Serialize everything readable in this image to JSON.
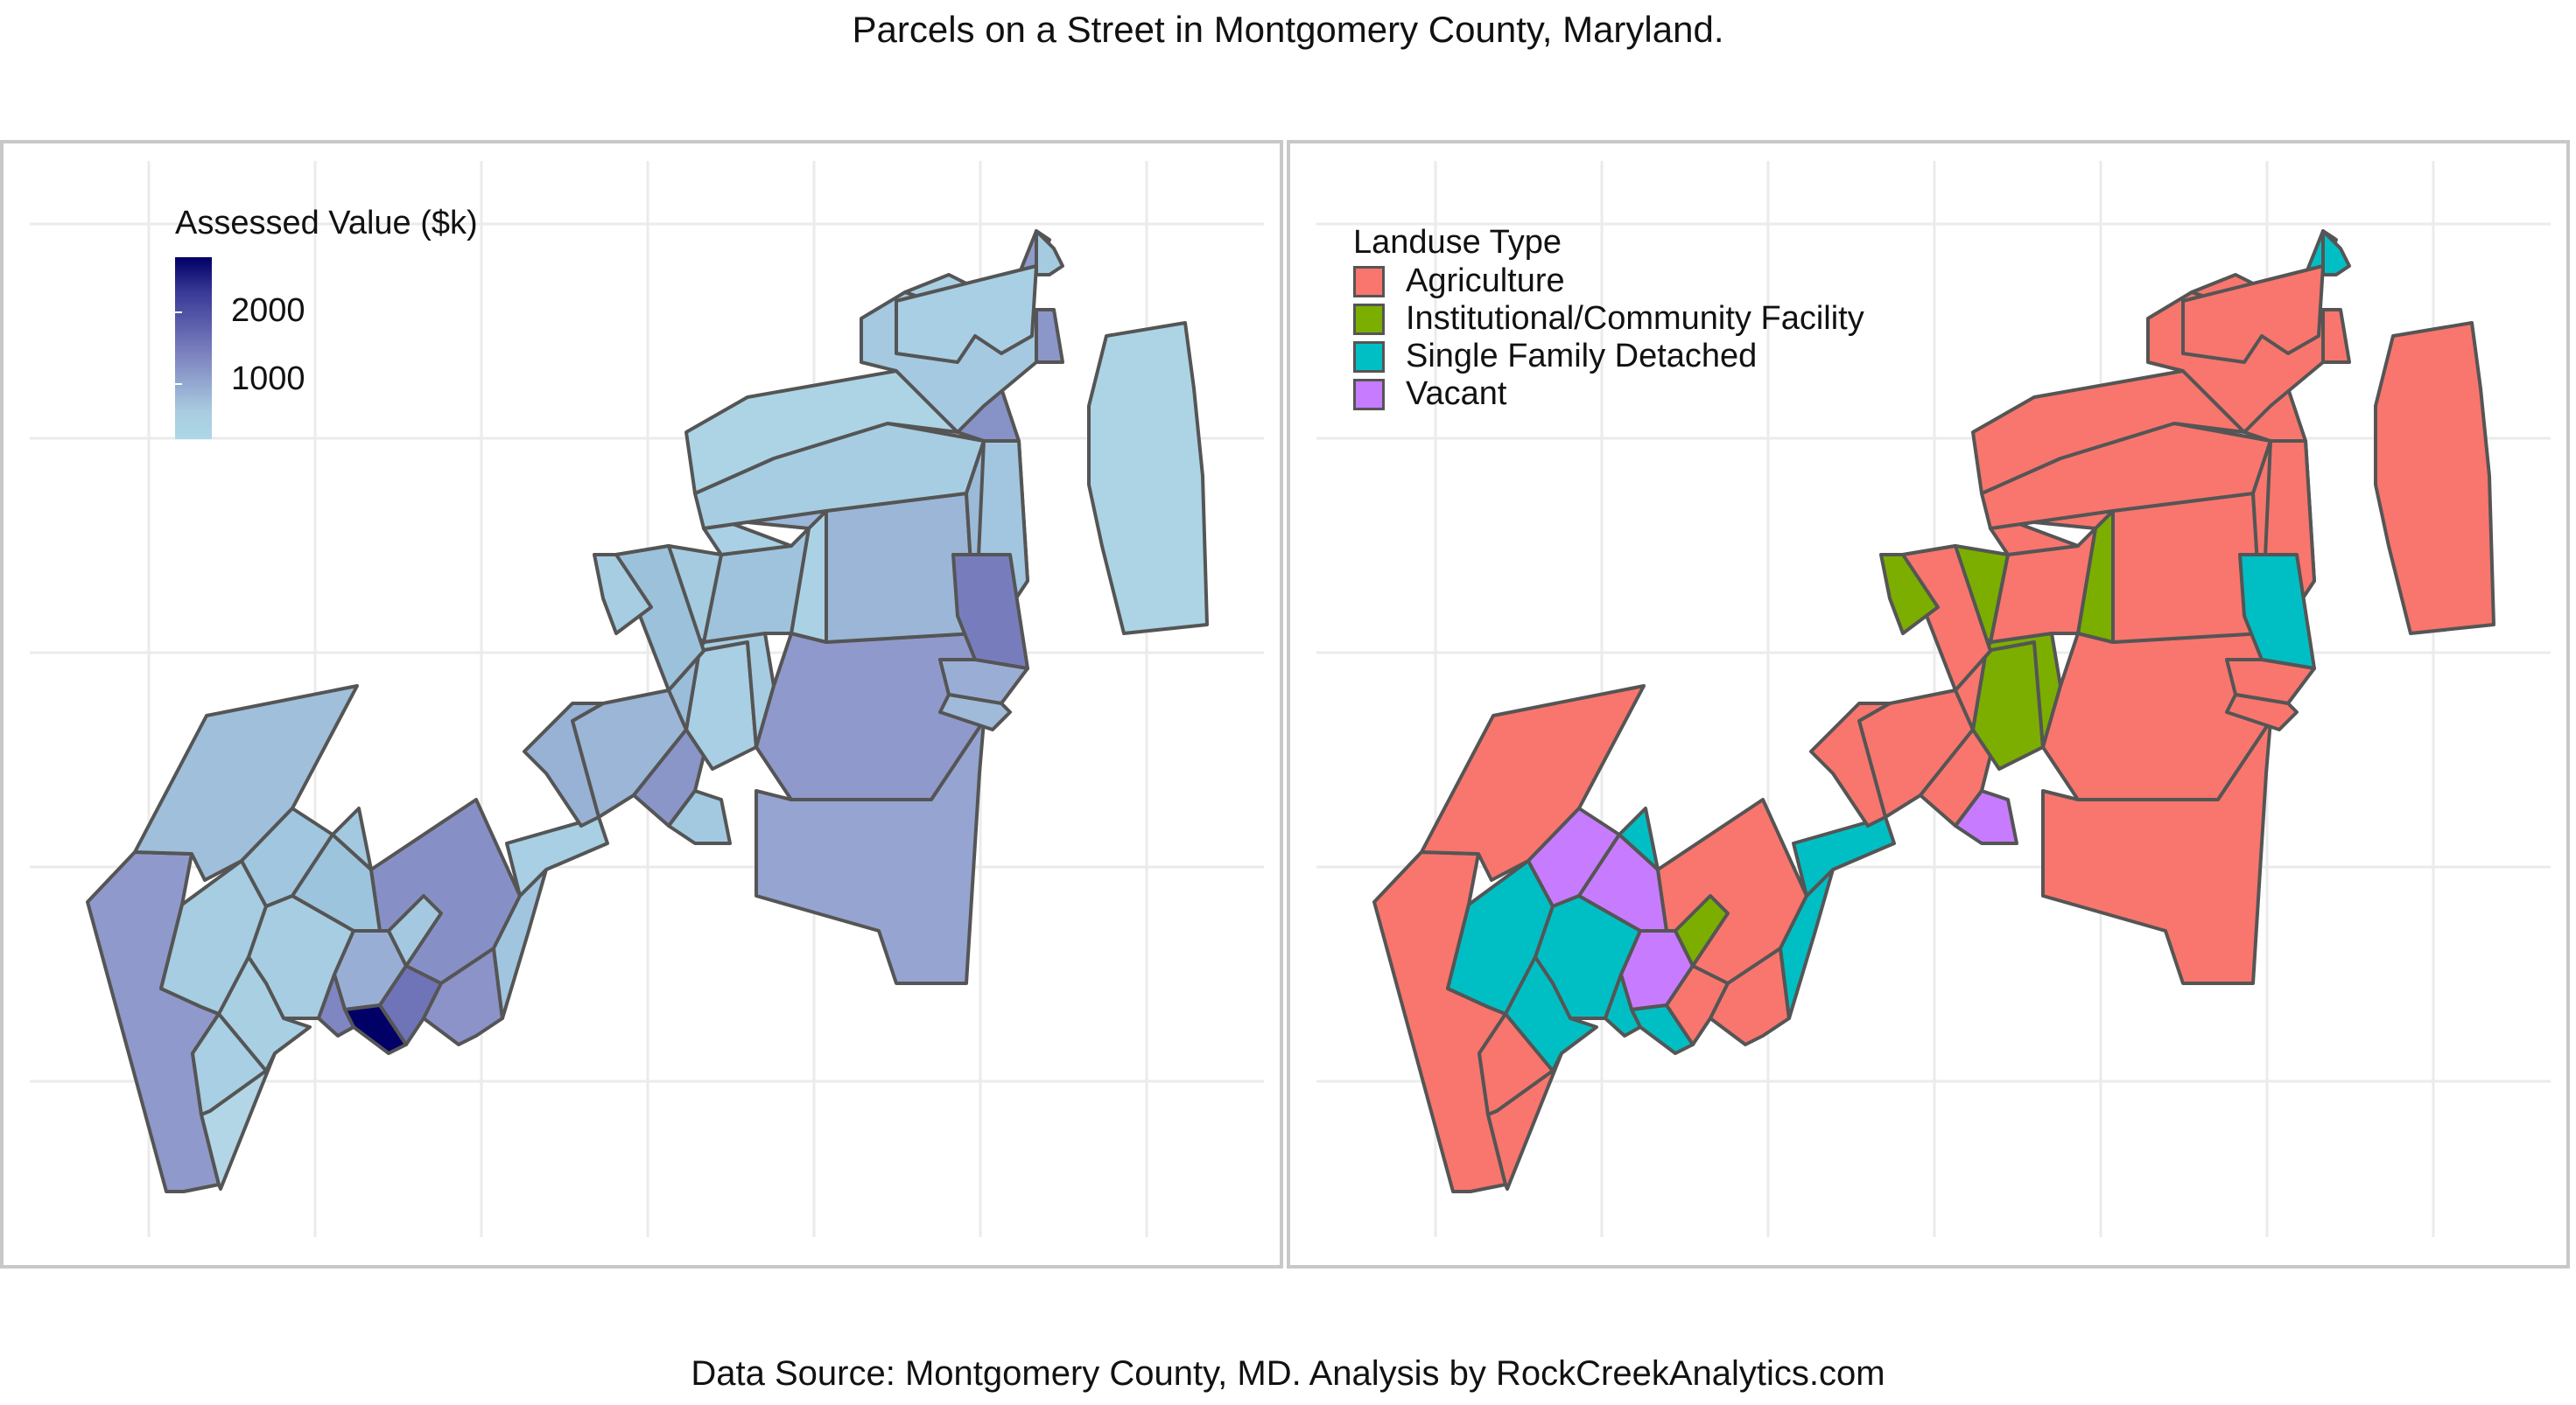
{
  "title": "Parcels on a Street in Montgomery County, Maryland.",
  "caption": "Data Source: Montgomery County, MD.  Analysis by RockCreekAnalytics.com",
  "colors": {
    "grid": "#ebebeb",
    "outline": "#555555",
    "panel_border": "#c8c8c8",
    "value_low": "#add8e6",
    "value_high": "#000066"
  },
  "left_map": {
    "legend": {
      "title": "Assessed Value ($k)",
      "ticks": [
        {
          "label": "2000",
          "value": 2000
        },
        {
          "label": "1000",
          "value": 1000
        }
      ],
      "range": [
        0,
        2500
      ]
    }
  },
  "right_map": {
    "legend": {
      "title": "Landuse Type",
      "items": [
        {
          "label": "Agriculture",
          "color": "#f8766d"
        },
        {
          "label": "Institutional/Community Facility",
          "color": "#7cae00"
        },
        {
          "label": "Single Family Detached",
          "color": "#00bfc4"
        },
        {
          "label": "Vacant",
          "color": "#c77cff"
        }
      ]
    }
  }
}
